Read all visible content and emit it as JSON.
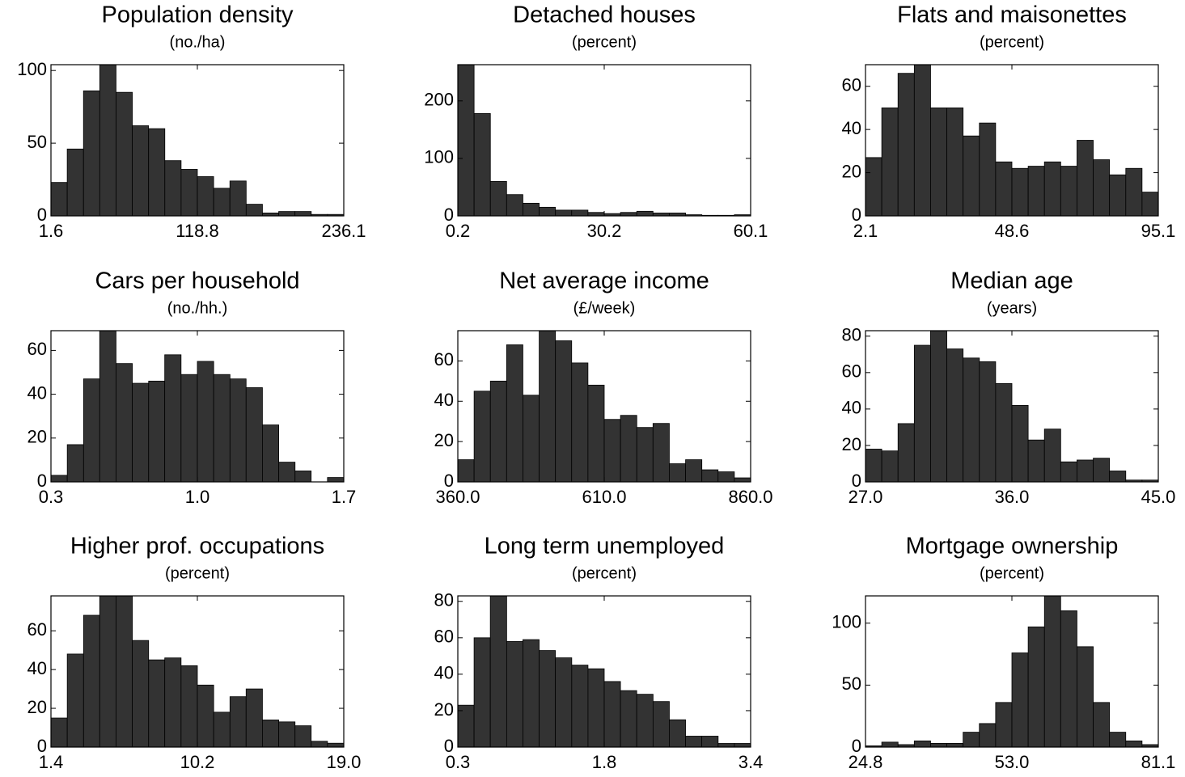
{
  "chart_data": [
    {
      "type": "histogram",
      "title": "Population density",
      "subtitle": "(no./ha)",
      "color": "#333333",
      "bins": [
        1.6,
        14.63,
        27.66,
        40.68,
        53.71,
        66.74,
        79.77,
        92.79,
        105.82,
        118.85,
        131.88,
        144.91,
        157.93,
        170.96,
        183.99,
        197.02,
        210.04,
        223.07,
        236.1
      ],
      "counts": [
        23,
        46,
        86,
        104,
        85,
        62,
        60,
        38,
        32,
        27,
        19,
        24,
        8,
        2,
        3,
        3,
        1,
        1
      ],
      "xlim": [
        1.6,
        236.1
      ],
      "xticks": [
        1.6,
        {
          "value": 118.85,
          "label": "118.8"
        },
        236.1
      ],
      "ylim": [
        0,
        104
      ],
      "yticks": [
        0,
        50,
        100
      ]
    },
    {
      "type": "histogram",
      "title": "Detached houses",
      "subtitle": "(percent)",
      "color": "#333333",
      "bins": [
        0.2,
        3.53,
        6.86,
        10.18,
        13.51,
        16.84,
        20.17,
        23.49,
        26.82,
        30.15,
        33.48,
        36.81,
        40.13,
        43.46,
        46.79,
        50.12,
        53.44,
        56.77,
        60.1
      ],
      "counts": [
        263,
        178,
        60,
        37,
        22,
        15,
        10,
        10,
        6,
        4,
        6,
        8,
        5,
        5,
        2,
        1,
        1,
        2
      ],
      "xlim": [
        0.2,
        60.1
      ],
      "xticks": [
        0.2,
        {
          "value": 30.15,
          "label": "30.2"
        },
        60.1
      ],
      "ylim": [
        0,
        263
      ],
      "yticks": [
        0,
        100,
        200
      ]
    },
    {
      "type": "histogram",
      "title": "Flats and maisonettes",
      "subtitle": "(percent)",
      "color": "#333333",
      "bins": [
        2.1,
        7.27,
        12.43,
        17.6,
        22.77,
        27.93,
        33.1,
        38.27,
        43.43,
        48.6,
        53.77,
        58.93,
        64.1,
        69.27,
        74.43,
        79.6,
        84.77,
        89.93,
        95.1
      ],
      "counts": [
        27,
        50,
        66,
        70,
        50,
        50,
        37,
        43,
        25,
        22,
        23,
        25,
        23,
        35,
        26,
        19,
        22,
        11
      ],
      "xlim": [
        2.1,
        95.1
      ],
      "xticks": [
        2.1,
        48.6,
        95.1
      ],
      "ylim": [
        0,
        70
      ],
      "yticks": [
        0,
        20,
        40,
        60
      ]
    },
    {
      "type": "histogram",
      "title": "Cars per household",
      "subtitle": "(no./hh.)",
      "color": "#333333",
      "bins": [
        0.3,
        0.378,
        0.456,
        0.533,
        0.611,
        0.689,
        0.767,
        0.844,
        0.922,
        1.0,
        1.078,
        1.156,
        1.233,
        1.311,
        1.389,
        1.467,
        1.544,
        1.622,
        1.7
      ],
      "counts": [
        3,
        17,
        47,
        69,
        54,
        45,
        46,
        58,
        49,
        55,
        49,
        47,
        43,
        26,
        9,
        5,
        0,
        2
      ],
      "xlim": [
        0.3,
        1.7
      ],
      "xticks": [
        0.3,
        {
          "value": 1,
          "label": "1.0"
        },
        1.7
      ],
      "ylim": [
        0,
        69
      ],
      "yticks": [
        0,
        20,
        40,
        60
      ]
    },
    {
      "type": "histogram",
      "title": "Net average income",
      "subtitle": "(£/week)",
      "color": "#333333",
      "bins": [
        360,
        387.8,
        415.6,
        443.3,
        471.1,
        498.9,
        526.7,
        554.4,
        582.2,
        610,
        637.8,
        665.6,
        693.3,
        721.1,
        748.9,
        776.7,
        804.4,
        832.2,
        860
      ],
      "counts": [
        11,
        45,
        50,
        68,
        43,
        75,
        70,
        59,
        48,
        31,
        33,
        27,
        29,
        9,
        11,
        6,
        5,
        2
      ],
      "xlim": [
        360,
        860
      ],
      "xticks": [
        {
          "value": 360,
          "label": "360.0"
        },
        {
          "value": 610,
          "label": "610.0"
        },
        {
          "value": 860,
          "label": "860.0"
        }
      ],
      "ylim": [
        0,
        75
      ],
      "yticks": [
        0,
        20,
        40,
        60
      ]
    },
    {
      "type": "histogram",
      "title": "Median age",
      "subtitle": "(years)",
      "color": "#333333",
      "bins": [
        27,
        28,
        29,
        30,
        31,
        32,
        33,
        34,
        35,
        36,
        37,
        38,
        39,
        40,
        41,
        42,
        43,
        44,
        45
      ],
      "counts": [
        18,
        17,
        32,
        75,
        83,
        73,
        68,
        66,
        54,
        42,
        23,
        29,
        11,
        12,
        13,
        6,
        1,
        1
      ],
      "xlim": [
        27,
        45
      ],
      "xticks": [
        {
          "value": 27,
          "label": "27.0"
        },
        {
          "value": 36,
          "label": "36.0"
        },
        {
          "value": 45,
          "label": "45.0"
        }
      ],
      "ylim": [
        0,
        83
      ],
      "yticks": [
        0,
        20,
        40,
        60,
        80
      ]
    },
    {
      "type": "histogram",
      "title": "Higher prof. occupations",
      "subtitle": "(percent)",
      "color": "#333333",
      "bins": [
        1.4,
        2.38,
        3.36,
        4.33,
        5.31,
        6.29,
        7.27,
        8.24,
        9.22,
        10.2,
        11.18,
        12.16,
        13.13,
        14.11,
        15.09,
        16.07,
        17.04,
        18.02,
        19.0
      ],
      "counts": [
        15,
        48,
        68,
        78,
        78,
        55,
        45,
        46,
        42,
        32,
        18,
        26,
        30,
        14,
        13,
        11,
        3,
        2
      ],
      "xlim": [
        1.4,
        19
      ],
      "xticks": [
        1.4,
        10.2,
        {
          "value": 19,
          "label": "19.0"
        }
      ],
      "ylim": [
        0,
        78
      ],
      "yticks": [
        0,
        20,
        40,
        60
      ]
    },
    {
      "type": "histogram",
      "title": "Long term unemployed",
      "subtitle": "(percent)",
      "color": "#333333",
      "bins": [
        0.3,
        0.472,
        0.644,
        0.817,
        0.989,
        1.161,
        1.333,
        1.506,
        1.678,
        1.85,
        2.022,
        2.194,
        2.367,
        2.539,
        2.711,
        2.883,
        3.056,
        3.228,
        3.4
      ],
      "counts": [
        23,
        60,
        83,
        58,
        59,
        53,
        49,
        45,
        43,
        36,
        31,
        29,
        25,
        15,
        6,
        6,
        2,
        2
      ],
      "xlim": [
        0.3,
        3.4
      ],
      "xticks": [
        0.3,
        {
          "value": 1.85,
          "label": "1.8"
        },
        3.4
      ],
      "ylim": [
        0,
        83
      ],
      "yticks": [
        0,
        20,
        40,
        60,
        80
      ]
    },
    {
      "type": "histogram",
      "title": "Mortgage ownership",
      "subtitle": "(percent)",
      "color": "#333333",
      "bins": [
        24.8,
        27.93,
        31.06,
        34.18,
        37.31,
        40.44,
        43.57,
        46.69,
        49.82,
        52.95,
        56.08,
        59.21,
        62.33,
        65.46,
        68.59,
        71.72,
        74.84,
        77.97,
        81.1
      ],
      "counts": [
        1,
        4,
        2,
        5,
        3,
        3,
        12,
        19,
        36,
        76,
        97,
        122,
        110,
        81,
        36,
        12,
        5,
        2
      ],
      "xlim": [
        24.8,
        81.1
      ],
      "xticks": [
        24.8,
        {
          "value": 52.95,
          "label": "53.0"
        },
        81.1
      ],
      "ylim": [
        0,
        122
      ],
      "yticks": [
        0,
        50,
        100
      ]
    }
  ]
}
